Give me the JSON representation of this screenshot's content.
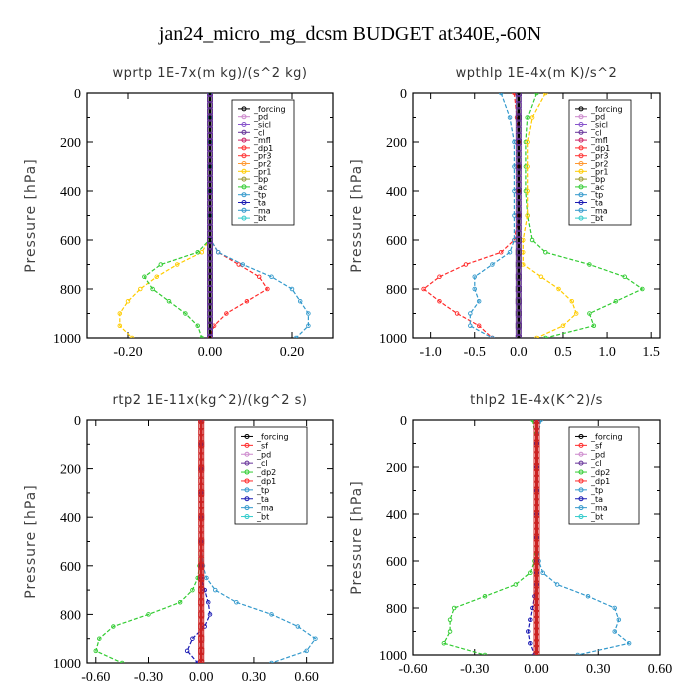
{
  "figure_title": "jan24_micro_mg_dcsm  BUDGET at340E,-60N",
  "chart_data": [
    {
      "type": "line",
      "title": "wprtp   1E-7x(m kg)/(s^2 kg)",
      "ylabel": "Pressure [hPa]",
      "xlim": [
        -0.3,
        0.3
      ],
      "ylim": [
        1000,
        0
      ],
      "xticks": [
        "-0.20",
        "0.00",
        "0.20"
      ],
      "xtick_values": [
        -0.2,
        0.0,
        0.2
      ],
      "yticks": [
        "0",
        "200",
        "400",
        "600",
        "800",
        "1000"
      ],
      "y": [
        0,
        100,
        200,
        300,
        400,
        500,
        600,
        650,
        700,
        750,
        800,
        850,
        900,
        950,
        1000
      ],
      "legend": [
        "_forcing",
        "_pd",
        "_sicl",
        "_cl",
        "_mfl",
        "_dp1",
        "_pr3",
        "_pr2",
        "_pr1",
        "_bp",
        "_ac",
        "_tp",
        "_ta",
        "_ma",
        "_bt"
      ],
      "series": [
        {
          "name": "_dp1",
          "color": "#ff2a2a",
          "values": [
            0,
            0,
            0,
            0,
            0,
            0,
            0.002,
            0.02,
            0.07,
            0.12,
            0.14,
            0.09,
            0.04,
            0.01,
            0.0
          ]
        },
        {
          "name": "_pr1",
          "color": "#ffcc00",
          "values": [
            0,
            0,
            0,
            0,
            0,
            0,
            -0.002,
            -0.02,
            -0.08,
            -0.13,
            -0.17,
            -0.2,
            -0.22,
            -0.22,
            -0.19
          ]
        },
        {
          "name": "_ac",
          "color": "#33cc33",
          "values": [
            0,
            0,
            0,
            0,
            0,
            0,
            -0.002,
            -0.03,
            -0.12,
            -0.16,
            -0.14,
            -0.1,
            -0.06,
            -0.03,
            -0.02
          ]
        },
        {
          "name": "_tp",
          "color": "#3399cc",
          "values": [
            0,
            0,
            0,
            0,
            0,
            0,
            0.002,
            0.02,
            0.08,
            0.15,
            0.2,
            0.22,
            0.24,
            0.24,
            0.21
          ]
        },
        {
          "name": "_forcing",
          "color": "#000000",
          "values": [
            0,
            0,
            0,
            0,
            0,
            0,
            0,
            0,
            0,
            0,
            0,
            0,
            0,
            0,
            0
          ]
        }
      ]
    },
    {
      "type": "line",
      "title": "wpthlp   1E-4x(m K)/s^2",
      "ylabel": "Pressure [hPa]",
      "xlim": [
        -1.2,
        1.6
      ],
      "ylim": [
        1000,
        0
      ],
      "xticks": [
        "-1.0",
        "-0.5",
        "0.0",
        "0.5",
        "1.0",
        "1.5"
      ],
      "xtick_values": [
        -1.0,
        -0.5,
        0.0,
        0.5,
        1.0,
        1.5
      ],
      "yticks": [
        "0",
        "200",
        "400",
        "600",
        "800",
        "1000"
      ],
      "y": [
        0,
        100,
        200,
        300,
        400,
        500,
        600,
        650,
        700,
        750,
        800,
        850,
        900,
        950,
        1000
      ],
      "legend": [
        "_forcing",
        "_pd",
        "_sicl",
        "_cl",
        "_mfl",
        "_dp1",
        "_pr3",
        "_pr2",
        "_pr1",
        "_bp",
        "_ac",
        "_tp",
        "_ta",
        "_ma",
        "_bt"
      ],
      "series": [
        {
          "name": "_dp1",
          "color": "#ff2a2a",
          "values": [
            -0.05,
            -0.02,
            0,
            0,
            0,
            0,
            -0.05,
            -0.2,
            -0.6,
            -0.9,
            -1.08,
            -0.9,
            -0.7,
            -0.45,
            -0.3
          ]
        },
        {
          "name": "_ac",
          "color": "#33cc33",
          "values": [
            0.2,
            0.1,
            0.08,
            0.08,
            0.08,
            0.1,
            0.15,
            0.3,
            0.8,
            1.2,
            1.4,
            1.1,
            0.8,
            0.85,
            0.3
          ]
        },
        {
          "name": "_pr1",
          "color": "#ffcc00",
          "values": [
            0.3,
            0.15,
            0.1,
            0.1,
            0.1,
            0.1,
            0.05,
            0.05,
            0.05,
            0.25,
            0.45,
            0.6,
            0.65,
            0.5,
            0.2
          ]
        },
        {
          "name": "_tp",
          "color": "#3399cc",
          "values": [
            -0.2,
            -0.1,
            -0.05,
            -0.05,
            -0.05,
            -0.05,
            -0.05,
            -0.1,
            -0.3,
            -0.5,
            -0.5,
            -0.45,
            -0.55,
            -0.55,
            -0.3
          ]
        },
        {
          "name": "_forcing",
          "color": "#000000",
          "values": [
            0,
            0,
            0,
            0,
            0,
            0,
            0,
            0,
            0,
            0,
            0,
            0,
            0,
            0,
            0
          ]
        }
      ]
    },
    {
      "type": "line",
      "title": "rtp2   1E-11x(kg^2)/(kg^2 s)",
      "ylabel": "Pressure [hPa]",
      "xlim": [
        -0.65,
        0.75
      ],
      "ylim": [
        1000,
        0
      ],
      "xticks": [
        "-0.60",
        "-0.30",
        "0.00",
        "0.30",
        "0.60"
      ],
      "xtick_values": [
        -0.6,
        -0.3,
        0.0,
        0.3,
        0.6
      ],
      "yticks": [
        "0",
        "200",
        "400",
        "600",
        "800",
        "1000"
      ],
      "y": [
        0,
        100,
        200,
        300,
        400,
        500,
        600,
        650,
        700,
        750,
        800,
        850,
        900,
        950,
        1000
      ],
      "legend": [
        "_forcing",
        "_sf",
        "_pd",
        "_cl",
        "_dp2",
        "_dp1",
        "_tp",
        "_ta",
        "_ma",
        "_bt"
      ],
      "series": [
        {
          "name": "_dp1",
          "color": "#33cc33",
          "values": [
            0,
            0,
            0,
            0,
            0,
            0,
            -0.01,
            -0.02,
            -0.05,
            -0.12,
            -0.3,
            -0.5,
            -0.58,
            -0.6,
            -0.45
          ]
        },
        {
          "name": "_tp",
          "color": "#3399cc",
          "values": [
            0,
            0,
            0,
            0,
            0,
            0,
            0.01,
            0.03,
            0.08,
            0.2,
            0.4,
            0.55,
            0.65,
            0.6,
            0.4
          ]
        },
        {
          "name": "_ta",
          "color": "#1a1ab3",
          "values": [
            0,
            0,
            0,
            0,
            0,
            0,
            0,
            0,
            0.02,
            0.04,
            0.05,
            0.02,
            -0.05,
            -0.08,
            -0.02
          ]
        },
        {
          "name": "_forcing",
          "color": "#cc2222",
          "values": [
            0,
            0,
            0,
            0,
            0,
            0,
            0,
            0,
            0,
            0,
            0,
            0,
            0,
            0,
            0
          ]
        }
      ]
    },
    {
      "type": "line",
      "title": "thlp2   1E-4x(K^2)/s",
      "ylabel": "Pressure [hPa]",
      "xlim": [
        -0.6,
        0.6
      ],
      "ylim": [
        1000,
        0
      ],
      "xticks": [
        "-0.60",
        "-0.30",
        "0.00",
        "0.30",
        "0.60"
      ],
      "xtick_values": [
        -0.6,
        -0.3,
        0.0,
        0.3,
        0.6
      ],
      "yticks": [
        "0",
        "200",
        "400",
        "600",
        "800",
        "1000"
      ],
      "y": [
        0,
        100,
        200,
        300,
        400,
        500,
        600,
        650,
        700,
        750,
        800,
        850,
        900,
        950,
        1000
      ],
      "legend": [
        "_forcing",
        "_sf",
        "_pd",
        "_cl",
        "_dp2",
        "_dp1",
        "_tp",
        "_ta",
        "_ma",
        "_bt"
      ],
      "series": [
        {
          "name": "_dp1",
          "color": "#33cc33",
          "values": [
            -0.02,
            0,
            0,
            0,
            0,
            0,
            -0.01,
            -0.03,
            -0.1,
            -0.25,
            -0.4,
            -0.42,
            -0.42,
            -0.45,
            -0.25
          ]
        },
        {
          "name": "_tp",
          "color": "#3399cc",
          "values": [
            0.02,
            0,
            0,
            0,
            0,
            0,
            0.01,
            0.03,
            0.1,
            0.25,
            0.38,
            0.4,
            0.38,
            0.45,
            0.2
          ]
        },
        {
          "name": "_ta",
          "color": "#1a1ab3",
          "values": [
            0,
            0,
            0,
            0,
            0,
            0,
            0,
            0,
            0,
            -0.01,
            -0.02,
            -0.03,
            -0.04,
            -0.03,
            -0.01
          ]
        },
        {
          "name": "_forcing",
          "color": "#cc2222",
          "values": [
            0,
            0,
            0,
            0,
            0,
            0,
            0,
            0,
            0,
            0,
            0,
            0,
            0,
            0,
            0
          ]
        }
      ]
    }
  ]
}
